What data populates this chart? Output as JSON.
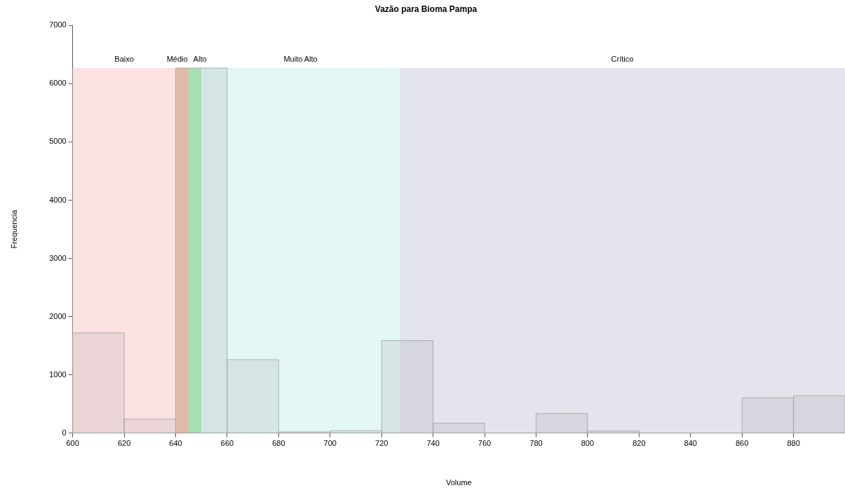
{
  "chart_data": {
    "type": "histogram",
    "title": "Vazão para Bioma Pampa",
    "xlabel": "Volume",
    "ylabel": "Frequencia",
    "bins": [
      600,
      620,
      640,
      660,
      680,
      700,
      720,
      740,
      760,
      780,
      800,
      820,
      840,
      860,
      880,
      900
    ],
    "values": [
      1720,
      240,
      6270,
      1260,
      20,
      40,
      1590,
      170,
      0,
      335,
      35,
      0,
      0,
      605,
      640
    ],
    "color": "#a0a0a0",
    "xlim": [
      600,
      900
    ],
    "xticks": [
      600,
      620,
      640,
      660,
      680,
      700,
      720,
      740,
      760,
      780,
      800,
      820,
      840,
      860,
      880
    ],
    "ylim": [
      0,
      7000
    ],
    "yticks": [
      0,
      1000,
      2000,
      3000,
      4000,
      5000,
      6000,
      7000
    ],
    "bands": [
      {
        "axis": "x",
        "from": 600,
        "to": 640,
        "label": "Baixo",
        "color": "#fde2e4"
      },
      {
        "axis": "x",
        "from": 640,
        "to": 645,
        "label": "Médio",
        "color": "#f1c0aa"
      },
      {
        "axis": "x",
        "from": 645,
        "to": 650,
        "label": "Alto",
        "color": "#a8f0b4"
      },
      {
        "axis": "x",
        "from": 650,
        "to": 727,
        "label": "Muito Alto",
        "color": "#e3f7f7"
      },
      {
        "axis": "x",
        "from": 727,
        "to": 900,
        "label": "Crítico",
        "color": "#e4e4ee"
      }
    ],
    "grid": false,
    "legend": false
  }
}
